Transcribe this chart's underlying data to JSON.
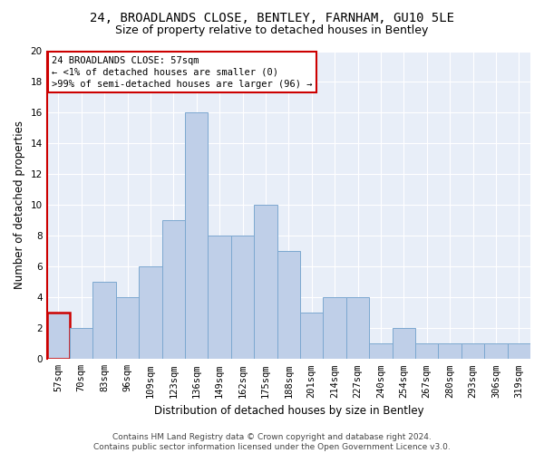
{
  "title1": "24, BROADLANDS CLOSE, BENTLEY, FARNHAM, GU10 5LE",
  "title2": "Size of property relative to detached houses in Bentley",
  "xlabel": "Distribution of detached houses by size in Bentley",
  "ylabel": "Number of detached properties",
  "categories": [
    "57sqm",
    "70sqm",
    "83sqm",
    "96sqm",
    "109sqm",
    "123sqm",
    "136sqm",
    "149sqm",
    "162sqm",
    "175sqm",
    "188sqm",
    "201sqm",
    "214sqm",
    "227sqm",
    "240sqm",
    "254sqm",
    "267sqm",
    "280sqm",
    "293sqm",
    "306sqm",
    "319sqm"
  ],
  "values": [
    3,
    2,
    5,
    4,
    6,
    9,
    16,
    8,
    8,
    10,
    7,
    3,
    4,
    4,
    1,
    2,
    1,
    1,
    1,
    1,
    1
  ],
  "highlight_index": 0,
  "bar_color": "#BFCFE8",
  "bar_edge_color": "#7CA8D0",
  "highlight_bar_edge_color": "#CC0000",
  "background_color": "#E8EEF8",
  "grid_color": "#FFFFFF",
  "ylim": [
    0,
    20
  ],
  "yticks": [
    0,
    2,
    4,
    6,
    8,
    10,
    12,
    14,
    16,
    18,
    20
  ],
  "annotation_line1": "24 BROADLANDS CLOSE: 57sqm",
  "annotation_line2": "← <1% of detached houses are smaller (0)",
  "annotation_line3": ">99% of semi-detached houses are larger (96) →",
  "annotation_box_color": "#FFFFFF",
  "annotation_box_edge_color": "#CC0000",
  "footer_text": "Contains HM Land Registry data © Crown copyright and database right 2024.\nContains public sector information licensed under the Open Government Licence v3.0.",
  "title1_fontsize": 10,
  "title2_fontsize": 9,
  "xlabel_fontsize": 8.5,
  "ylabel_fontsize": 8.5,
  "tick_fontsize": 7.5,
  "annotation_fontsize": 7.5,
  "footer_fontsize": 6.5
}
